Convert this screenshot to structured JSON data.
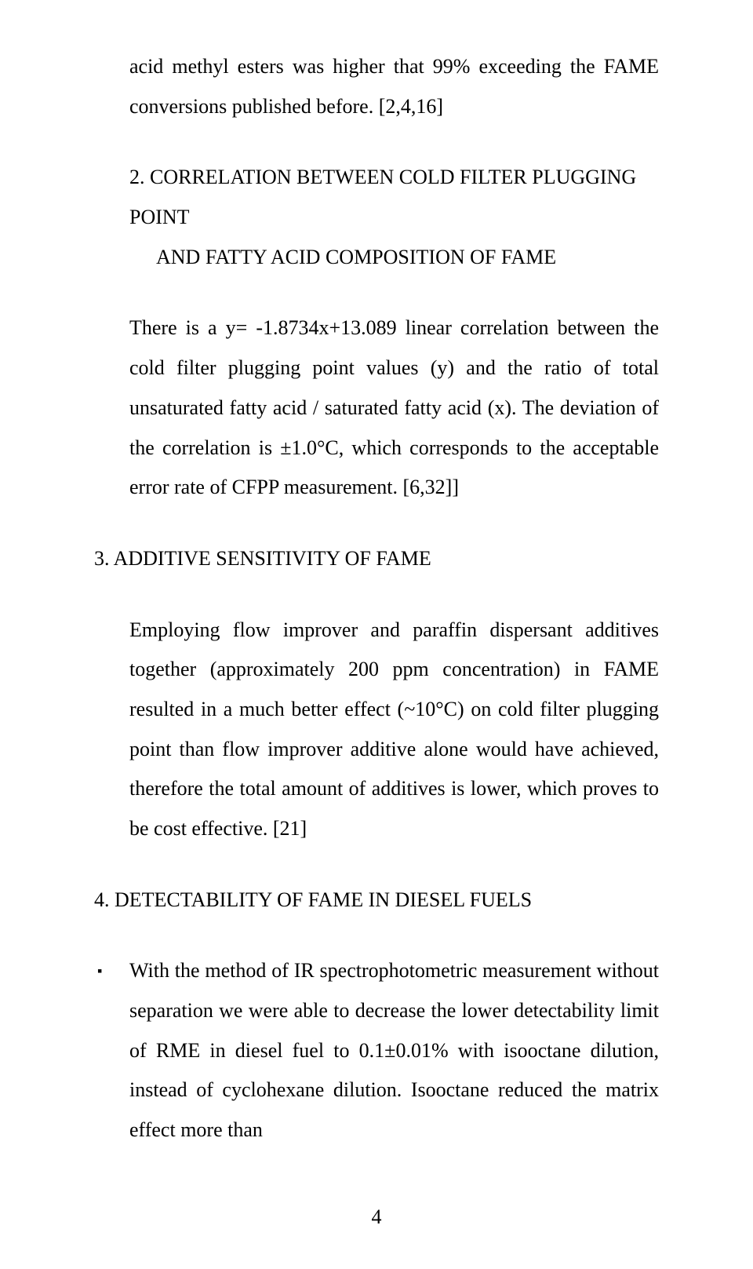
{
  "intro": {
    "text": "acid methyl esters was higher that 99% exceeding the FAME conversions published before. [2,4,16]"
  },
  "section2": {
    "heading_line1": "2. CORRELATION BETWEEN COLD FILTER PLUGGING POINT",
    "heading_line2": "AND FATTY ACID COMPOSITION OF FAME",
    "body": "There is a y= -1.8734x+13.089 linear correlation between the cold filter plugging point values (y) and the ratio of total unsaturated fatty acid / saturated fatty acid (x). The deviation of the correlation is ±1.0°C, which corresponds to the acceptable error rate of CFPP measurement. [6,32]]"
  },
  "section3": {
    "heading": "3. ADDITIVE SENSITIVITY OF FAME",
    "body": "Employing flow improver and paraffin dispersant additives together (approximately 200 ppm concentration) in FAME resulted in a much better effect (~10°C) on cold filter plugging point than flow improver additive alone would have achieved, therefore the total amount of additives is lower, which proves to be cost effective. [21]"
  },
  "section4": {
    "heading": "4. DETECTABILITY OF FAME IN DIESEL FUELS",
    "bullet_marker": "▪",
    "body": "With the method of IR spectrophotometric measurement without separation we were able to decrease the lower detectability limit of RME in diesel fuel to 0.1±0.01% with isooctane dilution, instead of cyclohexane dilution. Isooctane reduced the matrix effect more than"
  },
  "page_number": "4"
}
